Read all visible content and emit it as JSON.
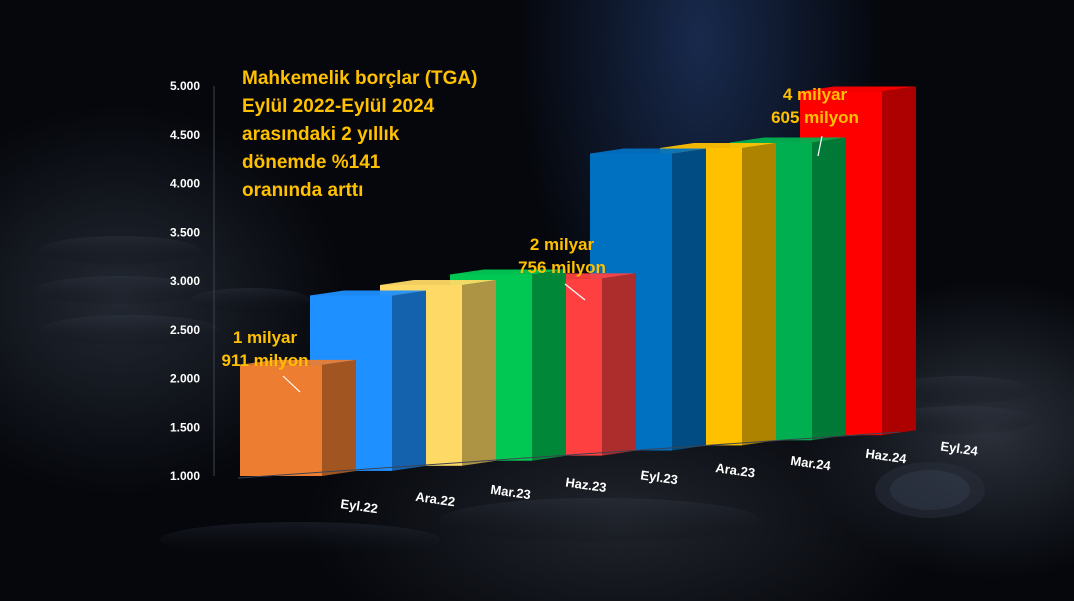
{
  "chart_data": {
    "type": "bar",
    "title_lines": [
      "Mahkemelik borçlar (TGA)",
      "Eylül 2022-Eylül 2024",
      "arasındaki 2 yıllık",
      "dönemde %141",
      "oranında arttı"
    ],
    "categories": [
      "Eyl.22",
      "Ara.22",
      "Mar.23",
      "Haz.23",
      "Eyl.23",
      "Ara.23",
      "Mar.24",
      "Haz.24",
      "Eyl.24"
    ],
    "values": [
      1911,
      2600,
      2700,
      2800,
      2756,
      4000,
      4050,
      4100,
      4605
    ],
    "ylim": [
      1000,
      5000
    ],
    "yticks": [
      "1.000",
      "1.500",
      "2.000",
      "2.500",
      "3.000",
      "3.500",
      "4.000",
      "4.500",
      "5.000"
    ],
    "ytick_values": [
      1000,
      1500,
      2000,
      2500,
      3000,
      3500,
      4000,
      4500,
      5000
    ],
    "colors": [
      "#ed7d31",
      "#1e90ff",
      "#ffd966",
      "#00c853",
      "#ff4040",
      "#0070c0",
      "#ffc000",
      "#00b050",
      "#ff0000"
    ],
    "annotations": [
      {
        "index": 0,
        "lines": [
          "1 milyar",
          "911 milyon"
        ]
      },
      {
        "index": 4,
        "lines": [
          "2 milyar",
          "756 milyon"
        ]
      },
      {
        "index": 8,
        "lines": [
          "4 milyar",
          "605 milyon"
        ]
      }
    ]
  }
}
